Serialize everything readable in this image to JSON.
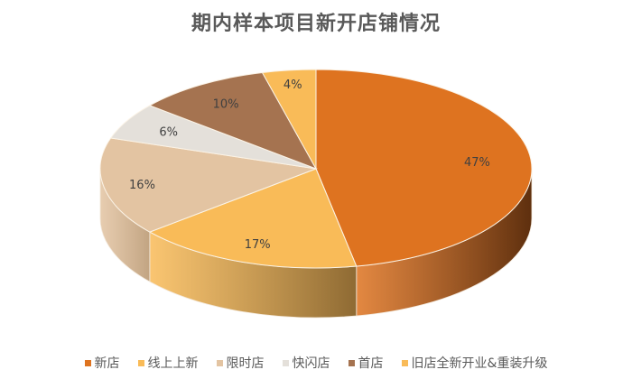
{
  "chart_data": {
    "type": "pie",
    "style": "3d",
    "title": "期内样本项目新开店铺情况",
    "categories": [
      "新店",
      "线上上新",
      "限时店",
      "快闪店",
      "首店",
      "旧店全新开业&重装升级"
    ],
    "values": [
      47,
      17,
      16,
      6,
      10,
      4
    ],
    "labels": [
      "47%",
      "17%",
      "16%",
      "6%",
      "10%",
      "4%"
    ],
    "colors": [
      "#DE7320",
      "#F9BB58",
      "#E3C4A2",
      "#E4E0DA",
      "#A57350",
      "#F9BB58"
    ],
    "side_colors": [
      "#5E2F0E",
      "#8E6A33",
      "#C2A482",
      "#C8C3BC",
      "#7A5236",
      "#C9963F"
    ],
    "legend_position": "bottom",
    "start_angle_deg": 0,
    "direction": "clockwise"
  },
  "title": "期内样本项目新开店铺情况",
  "legend": [
    {
      "label": "新店",
      "color": "#DE7320"
    },
    {
      "label": "线上上新",
      "color": "#F9BB58"
    },
    {
      "label": "限时店",
      "color": "#E3C4A2"
    },
    {
      "label": "快闪店",
      "color": "#E4E0DA"
    },
    {
      "label": "首店",
      "color": "#A57350"
    },
    {
      "label": "旧店全新开业&重装升级",
      "color": "#F9BB58"
    }
  ]
}
